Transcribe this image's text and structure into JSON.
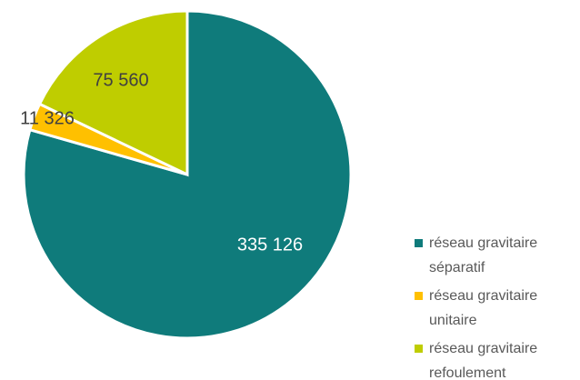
{
  "chart_data": {
    "type": "pie",
    "categories": [
      "réseau gravitaire séparatif",
      "réseau gravitaire unitaire",
      "réseau gravitaire refoulement"
    ],
    "values": [
      335126,
      11326,
      75560
    ],
    "value_labels": [
      "335 126",
      "11 326",
      "75 560"
    ],
    "colors": [
      "#0f7b7b",
      "#ffc000",
      "#bfcd00"
    ],
    "legend": "right"
  }
}
